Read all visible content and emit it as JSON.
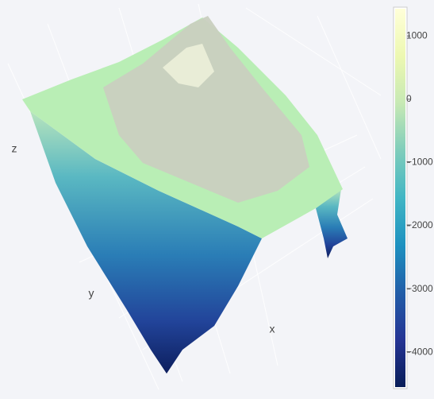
{
  "chart_data": {
    "type": "surface",
    "x_label": "x",
    "y_label": "y",
    "z_label": "z",
    "clim": [
      -4550,
      1430
    ],
    "colorbar_ticks": [
      1000,
      0,
      {
        "value": -1000,
        "label": "−1000"
      },
      {
        "value": -2000,
        "label": "−2000"
      },
      {
        "value": -3000,
        "label": "−3000"
      },
      {
        "value": -4000,
        "label": "−4000"
      }
    ],
    "colorscale": [
      "#081d58",
      "#253494",
      "#225ea8",
      "#1d91c0",
      "#41b6c4",
      "#7fcdbb",
      "#c7e9b4",
      "#edf8b1",
      "#ffffd9"
    ]
  }
}
